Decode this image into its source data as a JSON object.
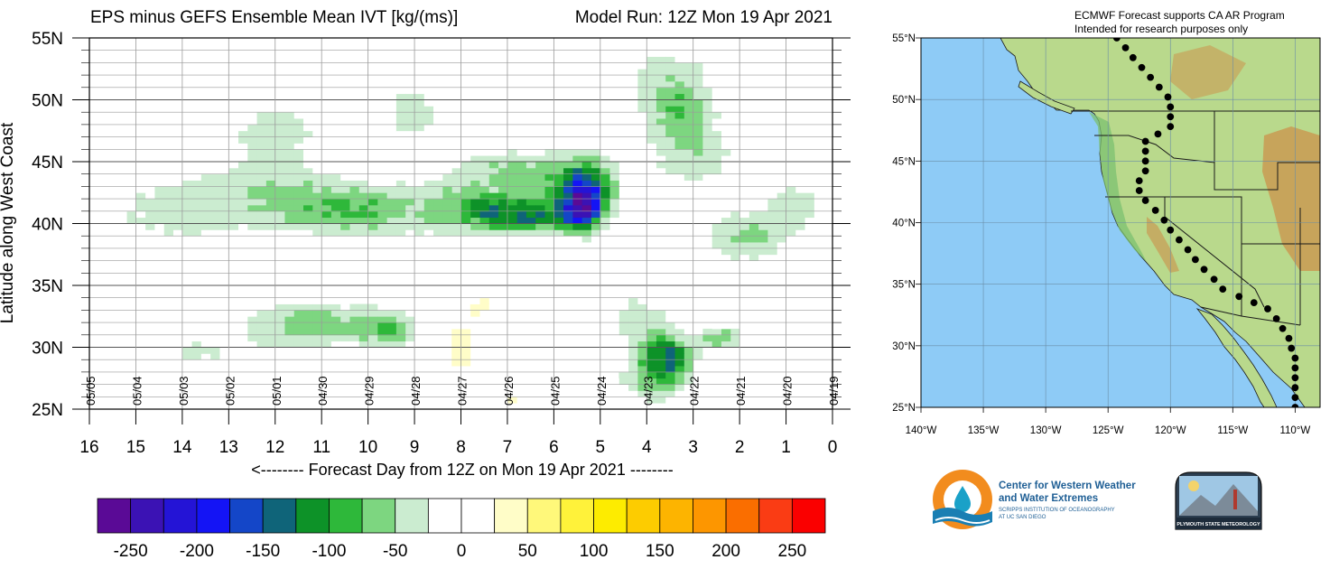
{
  "colors": {
    "colorbar": [
      "#5a0a96",
      "#3b12b4",
      "#2414d6",
      "#1414f5",
      "#1446c8",
      "#0f6479",
      "#0d9228",
      "#2eb83a",
      "#7dd680",
      "#cbecd0",
      "#ffffff",
      "#ffffff",
      "#fffdc8",
      "#fff87a",
      "#fff23a",
      "#fdec00",
      "#fdcc00",
      "#fdb400",
      "#fd9600",
      "#fa6e00",
      "#fa3c14",
      "#fa0000"
    ],
    "ocean": "#8ecbf6",
    "land": "#b8d88a",
    "mountain": "#c89a50",
    "dots": "#000000"
  },
  "chart_data": {
    "type": "heatmap",
    "title": "EPS minus GEFS Ensemble Mean IVT [kg/(ms)]",
    "subtitle": "Model Run: 12Z Mon 19 Apr 2021",
    "xlabel": "<-------- Forecast Day from 12Z on Mon 19 Apr 2021 --------",
    "ylabel": "Latitude along West Coast",
    "x_axis_reversed": true,
    "xlim": [
      16,
      0
    ],
    "ylim": [
      25,
      55
    ],
    "x_ticks": [
      "16",
      "15",
      "14",
      "13",
      "12",
      "11",
      "10",
      "9",
      "8",
      "7",
      "6",
      "5",
      "4",
      "3",
      "2",
      "1",
      "0"
    ],
    "y_ticks": [
      "25N",
      "30N",
      "35N",
      "40N",
      "45N",
      "50N",
      "55N"
    ],
    "date_labels": [
      {
        "day": 16,
        "label": "05/05"
      },
      {
        "day": 15,
        "label": "05/04"
      },
      {
        "day": 14,
        "label": "05/03"
      },
      {
        "day": 13,
        "label": "05/02"
      },
      {
        "day": 12,
        "label": "05/01"
      },
      {
        "day": 11,
        "label": "04/30"
      },
      {
        "day": 10,
        "label": "04/29"
      },
      {
        "day": 9,
        "label": "04/28"
      },
      {
        "day": 8,
        "label": "04/27"
      },
      {
        "day": 7,
        "label": "04/26"
      },
      {
        "day": 6,
        "label": "04/25"
      },
      {
        "day": 5,
        "label": "04/24"
      },
      {
        "day": 4,
        "label": "04/23"
      },
      {
        "day": 3,
        "label": "04/22"
      },
      {
        "day": 2,
        "label": "04/21"
      },
      {
        "day": 1,
        "label": "04/20"
      },
      {
        "day": 0,
        "label": "04/19"
      }
    ],
    "colorbar_labels": [
      "-250",
      "-200",
      "-150",
      "-100",
      "-50",
      "0",
      "50",
      "100",
      "150",
      "200",
      "250"
    ],
    "colorbar_levels": [
      -275,
      -250,
      -225,
      -200,
      -175,
      -150,
      -125,
      -100,
      -75,
      -50,
      -25,
      0,
      25,
      50,
      75,
      100,
      125,
      150,
      175,
      200,
      225,
      250,
      275
    ],
    "features": [
      {
        "day": 5.4,
        "lat": 41.2,
        "value": -175,
        "sx": 0.35,
        "sy": 1.6
      },
      {
        "day": 5.3,
        "lat": 42.8,
        "value": -110,
        "sx": 0.6,
        "sy": 2.4
      },
      {
        "day": 6.3,
        "lat": 40.6,
        "value": -100,
        "sx": 0.9,
        "sy": 1.3
      },
      {
        "day": 7.3,
        "lat": 41.0,
        "value": -85,
        "sx": 0.8,
        "sy": 1.5
      },
      {
        "day": 5.9,
        "lat": 43.5,
        "value": -55,
        "sx": 1.0,
        "sy": 2.0
      },
      {
        "day": 8.3,
        "lat": 41.5,
        "value": -50,
        "sx": 1.0,
        "sy": 2.5
      },
      {
        "day": 7.2,
        "lat": 44.5,
        "value": -45,
        "sx": 0.8,
        "sy": 1.5
      },
      {
        "day": 10.0,
        "lat": 41.0,
        "value": -55,
        "sx": 1.0,
        "sy": 2.0
      },
      {
        "day": 11.2,
        "lat": 41.5,
        "value": -40,
        "sx": 1.3,
        "sy": 2.2
      },
      {
        "day": 12.3,
        "lat": 42.5,
        "value": -35,
        "sx": 1.5,
        "sy": 3.0
      },
      {
        "day": 14.3,
        "lat": 41.0,
        "value": -35,
        "sx": 1.3,
        "sy": 2.5
      },
      {
        "day": 12.0,
        "lat": 47.5,
        "value": -35,
        "sx": 1.0,
        "sy": 2.5
      },
      {
        "day": 9.0,
        "lat": 49.0,
        "value": -35,
        "sx": 0.7,
        "sy": 2.5
      },
      {
        "day": 3.3,
        "lat": 49.0,
        "value": -65,
        "sx": 0.7,
        "sy": 2.3
      },
      {
        "day": 3.6,
        "lat": 52.0,
        "value": -35,
        "sx": 1.0,
        "sy": 2.5
      },
      {
        "day": 3.0,
        "lat": 45.5,
        "value": -45,
        "sx": 0.9,
        "sy": 2.5
      },
      {
        "day": 1.8,
        "lat": 39.0,
        "value": -55,
        "sx": 0.9,
        "sy": 2.0
      },
      {
        "day": 0.8,
        "lat": 41.5,
        "value": -40,
        "sx": 0.6,
        "sy": 1.8
      },
      {
        "day": 3.6,
        "lat": 29.5,
        "value": -115,
        "sx": 0.55,
        "sy": 1.6
      },
      {
        "day": 3.8,
        "lat": 27.5,
        "value": -70,
        "sx": 0.7,
        "sy": 1.8
      },
      {
        "day": 2.4,
        "lat": 30.8,
        "value": -75,
        "sx": 0.4,
        "sy": 0.8
      },
      {
        "day": 4.2,
        "lat": 32.5,
        "value": -35,
        "sx": 0.8,
        "sy": 2.3
      },
      {
        "day": 9.6,
        "lat": 31.5,
        "value": -75,
        "sx": 0.7,
        "sy": 1.5
      },
      {
        "day": 11.0,
        "lat": 32.0,
        "value": -55,
        "sx": 1.0,
        "sy": 1.6
      },
      {
        "day": 12.0,
        "lat": 31.5,
        "value": -30,
        "sx": 1.0,
        "sy": 2.0
      },
      {
        "day": 13.7,
        "lat": 29.5,
        "value": -30,
        "sx": 0.8,
        "sy": 1.8
      },
      {
        "day": 8.0,
        "lat": 30.0,
        "value": 45,
        "sx": 0.25,
        "sy": 2.0
      },
      {
        "day": 7.6,
        "lat": 33.5,
        "value": 30,
        "sx": 0.3,
        "sy": 1.5
      },
      {
        "day": 7.0,
        "lat": 25.8,
        "value": 30,
        "sx": 0.3,
        "sy": 1.0
      }
    ]
  },
  "map": {
    "header_line1": "ECMWF Forecast supports CA AR Program",
    "header_line2": "Intended for research purposes only",
    "lat_labels": [
      "55°N",
      "50°N",
      "45°N",
      "40°N",
      "35°N",
      "30°N",
      "25°N"
    ],
    "lon_labels": [
      "140°W",
      "135°W",
      "130°W",
      "125°W",
      "120°W",
      "115°W",
      "110°W"
    ],
    "dots": [
      [
        -124.3,
        55
      ],
      [
        -123.6,
        54.2
      ],
      [
        -123.0,
        53.4
      ],
      [
        -122.3,
        52.6
      ],
      [
        -121.6,
        51.8
      ],
      [
        -120.9,
        51
      ],
      [
        -120.2,
        50.2
      ],
      [
        -120,
        49.4
      ],
      [
        -120,
        48.6
      ],
      [
        -120,
        47.8
      ],
      [
        -121,
        47.2
      ],
      [
        -122,
        46.6
      ],
      [
        -122,
        45.8
      ],
      [
        -122,
        45
      ],
      [
        -122,
        44.2
      ],
      [
        -122.5,
        43.4
      ],
      [
        -122.5,
        42.6
      ],
      [
        -122,
        41.8
      ],
      [
        -121.2,
        41
      ],
      [
        -120.5,
        40.2
      ],
      [
        -120,
        39.4
      ],
      [
        -119.3,
        38.6
      ],
      [
        -118.6,
        37.8
      ],
      [
        -118,
        37
      ],
      [
        -117.3,
        36.2
      ],
      [
        -116.5,
        35.4
      ],
      [
        -115.8,
        34.6
      ],
      [
        -114.5,
        34
      ],
      [
        -113.3,
        33.5
      ],
      [
        -112.2,
        33
      ],
      [
        -111.5,
        32.2
      ],
      [
        -111,
        31.4
      ],
      [
        -110.5,
        30.6
      ],
      [
        -110.3,
        29.8
      ],
      [
        -110,
        29
      ],
      [
        -110,
        28.2
      ],
      [
        -110,
        27.4
      ],
      [
        -110,
        26.6
      ],
      [
        -110,
        25.8
      ],
      [
        -110,
        25
      ]
    ]
  },
  "logos": {
    "cw3e_line1": "Center for Western Weather",
    "cw3e_line2": "and Water Extremes",
    "cw3e_line3": "SCRIPPS INSTITUTION OF OCEANOGRAPHY",
    "cw3e_line4": "AT UC SAN DIEGO",
    "psu_text": "PLYMOUTH STATE METEOROLOGY"
  }
}
